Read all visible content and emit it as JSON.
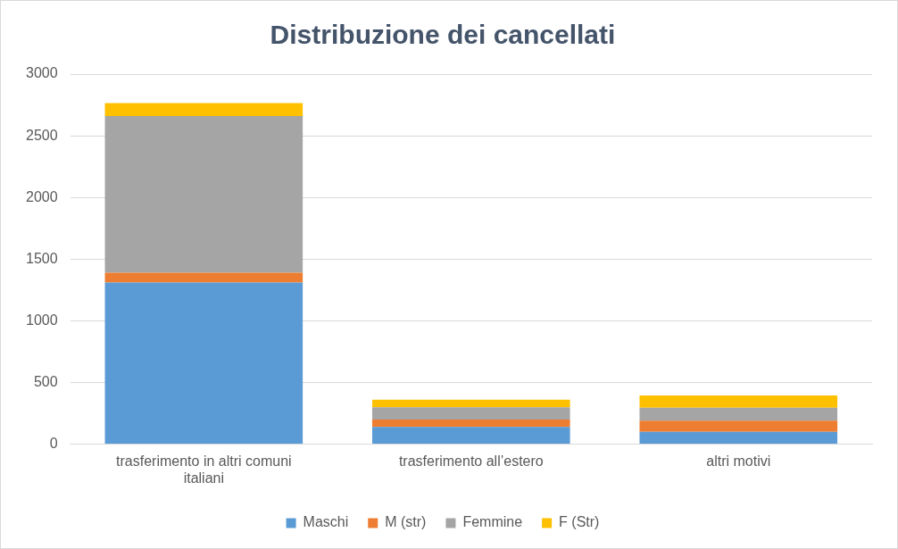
{
  "chart_data": {
    "type": "bar",
    "title": "Distribuzione dei cancellati",
    "categories": [
      "trasferimento in altri comuni italiani",
      "trasferimento all’estero",
      "altri motivi"
    ],
    "series": [
      {
        "name": "Maschi",
        "color": "#5b9bd5",
        "values": [
          1310,
          140,
          100
        ]
      },
      {
        "name": "M (str)",
        "color": "#ed7d31",
        "values": [
          80,
          60,
          90
        ]
      },
      {
        "name": "Femmine",
        "color": "#a5a5a5",
        "values": [
          1270,
          100,
          105
        ]
      },
      {
        "name": "F (Str)",
        "color": "#ffc000",
        "values": [
          105,
          60,
          100
        ]
      }
    ],
    "ylim": [
      0,
      3000
    ],
    "yticks": [
      0,
      500,
      1000,
      1500,
      2000,
      2500,
      3000
    ],
    "stacked": true,
    "grid": true,
    "legend": "bottom"
  }
}
